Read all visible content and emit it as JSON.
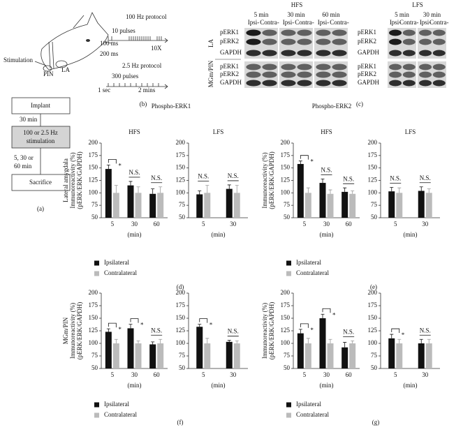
{
  "panel_a": {
    "stimulation": "Stimulation",
    "pin": "PIN",
    "la": "LA",
    "implant": "Implant",
    "wait1": "30 min",
    "stim_box": [
      "100 or 2.5 Hz",
      "stimulation"
    ],
    "wait2": [
      "5, 30 or",
      "60 min"
    ],
    "sacrifice": "Sacrifice",
    "label": "(a)"
  },
  "panel_b": {
    "hz100": "100 Hz protocol",
    "pulses10": "10 pulses",
    "ms100": "100 ms",
    "ms200": "200 ms",
    "repeat": "10X",
    "hz25": "2.5 Hz protocol",
    "pulses300": "300 pulses",
    "sec1": "1 sec",
    "mins2": "2 mins",
    "label": "(b)"
  },
  "panel_c": {
    "protocols": [
      "HFS",
      "LFS"
    ],
    "times": [
      "5 min",
      "30 min",
      "60 min"
    ],
    "lanes": [
      "Ipsi-",
      "Contra-"
    ],
    "rows": [
      "pERK1",
      "pERK2",
      "GAPDH"
    ],
    "regions": [
      "LA",
      "MGm/PIN"
    ],
    "label": "(c)"
  },
  "group_titles": [
    "Phospho-ERK1",
    "Phospho-ERK2"
  ],
  "panel_labels": [
    "(d)",
    "(e)",
    "(f)",
    "(g)"
  ],
  "chart_data": [
    {
      "type": "bar",
      "title": "HFS",
      "categories": [
        "5",
        "30",
        "60"
      ],
      "x_label": "(min)",
      "y_label": [
        "Lateral amygdala",
        "Immunoreactivity (%)",
        "(pERK/ERK/GAPDH)"
      ],
      "ylim": [
        50,
        200
      ],
      "yticks": [
        50,
        75,
        100,
        125,
        150,
        175,
        200
      ],
      "annotations": [
        "*",
        "N.S.",
        "N.S."
      ],
      "legend": "bottom",
      "series": [
        {
          "name": "Ipsilateral",
          "color": "#111111",
          "values": [
            148,
            115,
            98
          ],
          "error": [
            8,
            8,
            10
          ]
        },
        {
          "name": "Contralateral",
          "color": "#bbbbbb",
          "values": [
            100,
            100,
            100
          ],
          "error": [
            15,
            12,
            12
          ]
        }
      ]
    },
    {
      "type": "bar",
      "title": "LFS",
      "categories": [
        "5",
        "30"
      ],
      "x_label": "(min)",
      "ylim": [
        50,
        200
      ],
      "yticks": [
        50,
        75,
        100,
        125,
        150,
        175,
        200
      ],
      "annotations": [
        "N.S.",
        "N.S."
      ],
      "series": [
        {
          "name": "Ipsilateral",
          "color": "#111111",
          "values": [
            97,
            108
          ],
          "error": [
            7,
            8
          ]
        },
        {
          "name": "Contralateral",
          "color": "#bbbbbb",
          "values": [
            100,
            100
          ],
          "error": [
            15,
            15
          ]
        }
      ]
    },
    {
      "type": "bar",
      "title": "HFS",
      "categories": [
        "5",
        "30",
        "60"
      ],
      "x_label": "(min)",
      "y_label": [
        "Immunoreactivity (%)",
        "(pERK/ERK/GAPDH)"
      ],
      "ylim": [
        50,
        200
      ],
      "yticks": [
        50,
        75,
        100,
        125,
        150,
        175,
        200
      ],
      "annotations": [
        "*",
        "N.S.",
        "N.S."
      ],
      "legend": "bottom",
      "series": [
        {
          "name": "Ipsilateral",
          "color": "#111111",
          "values": [
            158,
            120,
            102
          ],
          "error": [
            6,
            8,
            8
          ]
        },
        {
          "name": "Contralateral",
          "color": "#bbbbbb",
          "values": [
            100,
            98,
            98
          ],
          "error": [
            10,
            8,
            6
          ]
        }
      ]
    },
    {
      "type": "bar",
      "title": "LFS",
      "categories": [
        "5",
        "30"
      ],
      "x_label": "(min)",
      "ylim": [
        50,
        200
      ],
      "yticks": [
        50,
        75,
        100,
        125,
        150,
        175,
        200
      ],
      "annotations": [
        "N.S.",
        "N.S."
      ],
      "series": [
        {
          "name": "Ipsilateral",
          "color": "#111111",
          "values": [
            103,
            104
          ],
          "error": [
            8,
            8
          ]
        },
        {
          "name": "Contralateral",
          "color": "#bbbbbb",
          "values": [
            100,
            100
          ],
          "error": [
            10,
            8
          ]
        }
      ]
    },
    {
      "type": "bar",
      "categories": [
        "5",
        "30",
        "60"
      ],
      "x_label": "(min)",
      "y_label": [
        "MGm/PIN",
        "Immunoreactivity (%)",
        "(pERK/ERK/GAPDH)"
      ],
      "ylim": [
        50,
        200
      ],
      "yticks": [
        50,
        75,
        100,
        125,
        150,
        175,
        200
      ],
      "annotations": [
        "*",
        "*",
        "N.S."
      ],
      "legend": "bottom",
      "series": [
        {
          "name": "Ipsilateral",
          "color": "#111111",
          "values": [
            123,
            130,
            98
          ],
          "error": [
            6,
            8,
            5
          ]
        },
        {
          "name": "Contralateral",
          "color": "#bbbbbb",
          "values": [
            100,
            100,
            100
          ],
          "error": [
            8,
            5,
            8
          ]
        }
      ]
    },
    {
      "type": "bar",
      "categories": [
        "5",
        "30"
      ],
      "x_label": "(min)",
      "ylim": [
        50,
        200
      ],
      "yticks": [
        50,
        75,
        100,
        125,
        150,
        175,
        200
      ],
      "annotations": [
        "*",
        "N.S."
      ],
      "series": [
        {
          "name": "Ipsilateral",
          "color": "#111111",
          "values": [
            133,
            103
          ],
          "error": [
            5,
            3
          ]
        },
        {
          "name": "Contralateral",
          "color": "#bbbbbb",
          "values": [
            100,
            100
          ],
          "error": [
            10,
            5
          ]
        }
      ]
    },
    {
      "type": "bar",
      "categories": [
        "5",
        "30",
        "60"
      ],
      "x_label": "(min)",
      "y_label": [
        "Immunoreactivity (%)",
        "(pERK/ERK/GAPDH)"
      ],
      "ylim": [
        50,
        200
      ],
      "yticks": [
        50,
        75,
        100,
        125,
        150,
        175,
        200
      ],
      "annotations": [
        "*",
        "*",
        "N.S."
      ],
      "legend": "bottom",
      "series": [
        {
          "name": "Ipsilateral",
          "color": "#111111",
          "values": [
            120,
            150,
            92
          ],
          "error": [
            8,
            8,
            10
          ]
        },
        {
          "name": "Contralateral",
          "color": "#bbbbbb",
          "values": [
            100,
            100,
            100
          ],
          "error": [
            10,
            8,
            5
          ]
        }
      ]
    },
    {
      "type": "bar",
      "categories": [
        "5",
        "30"
      ],
      "x_label": "(min)",
      "ylim": [
        50,
        200
      ],
      "yticks": [
        50,
        75,
        100,
        125,
        150,
        175,
        200
      ],
      "annotations": [
        "*",
        "N.S."
      ],
      "series": [
        {
          "name": "Ipsilateral",
          "color": "#111111",
          "values": [
            110,
            100
          ],
          "error": [
            8,
            8
          ]
        },
        {
          "name": "Contralateral",
          "color": "#bbbbbb",
          "values": [
            100,
            100
          ],
          "error": [
            8,
            8
          ]
        }
      ]
    }
  ]
}
